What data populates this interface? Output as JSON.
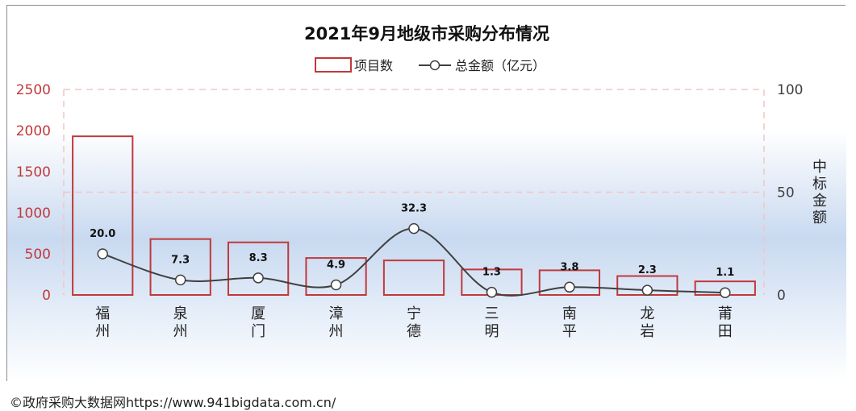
{
  "chart_data": {
    "type": "bar",
    "title": "2021年9月地级市采购分布情况",
    "categories": [
      [
        "福",
        "州"
      ],
      [
        "泉",
        "州"
      ],
      [
        "厦",
        "门"
      ],
      [
        "漳",
        "州"
      ],
      [
        "宁",
        "德"
      ],
      [
        "三",
        "明"
      ],
      [
        "南",
        "平"
      ],
      [
        "龙",
        "岩"
      ],
      [
        "莆",
        "田"
      ]
    ],
    "series": [
      {
        "name": "项目数",
        "type": "bar",
        "axis": "left",
        "values": [
          1930,
          680,
          640,
          450,
          420,
          310,
          300,
          230,
          165
        ]
      },
      {
        "name": "总金额（亿元）",
        "type": "line",
        "axis": "right",
        "values": [
          20.0,
          7.3,
          8.3,
          4.9,
          32.3,
          1.3,
          3.8,
          2.3,
          1.1
        ],
        "labels": [
          "20.0",
          "7.3",
          "8.3",
          "4.9",
          "32.3",
          "1.3",
          "3.8",
          "2.3",
          "1.1"
        ]
      }
    ],
    "ylim_left": [
      0,
      2500
    ],
    "yticks_left": [
      "0",
      "500",
      "1000",
      "1500",
      "2000",
      "2500"
    ],
    "ylim_right": [
      0,
      100
    ],
    "yticks_right": [
      "0",
      "50",
      "100"
    ],
    "ylabel_right": [
      "中",
      "标",
      "金",
      "额"
    ],
    "legend_position": "top",
    "colors": {
      "bar_border": "#c0393b",
      "line": "#404040",
      "left_axis_text": "#c0393b",
      "right_axis_text": "#404040",
      "grid": "#f2c6c6"
    }
  },
  "footer": {
    "credit": "©政府采购大数据网https://www.941bigdata.com.cn/"
  }
}
